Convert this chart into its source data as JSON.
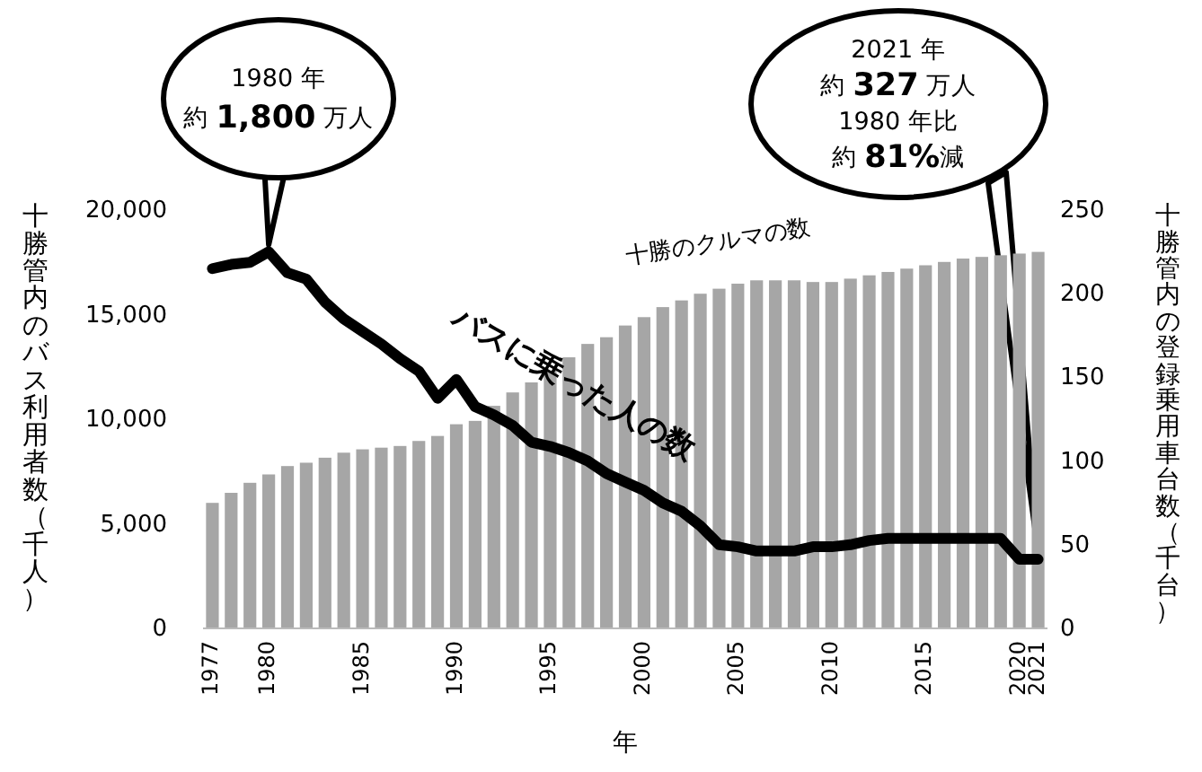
{
  "chart_data": {
    "type": "bar",
    "xlabel": "年",
    "ylabel": "十勝管内のバス利用者数（千人）",
    "y2label": "十勝管内の登録乗用車台数（千台）",
    "x": [
      1977,
      1978,
      1979,
      1980,
      1981,
      1982,
      1983,
      1984,
      1985,
      1986,
      1987,
      1988,
      1989,
      1990,
      1991,
      1992,
      1993,
      1994,
      1995,
      1996,
      1997,
      1998,
      1999,
      2000,
      2001,
      2002,
      2003,
      2004,
      2005,
      2006,
      2007,
      2008,
      2009,
      2010,
      2011,
      2012,
      2013,
      2014,
      2015,
      2016,
      2017,
      2018,
      2019,
      2020,
      2021
    ],
    "xlim": [
      1976.5,
      2021.5
    ],
    "xticks": [
      1977,
      1980,
      1985,
      1990,
      1995,
      2000,
      2005,
      2010,
      2015,
      2020,
      2021
    ],
    "ylim": [
      0,
      20000
    ],
    "yticks": [
      0,
      {
        "value": 5000,
        "label": "5,000"
      },
      {
        "value": 10000,
        "label": "10,000"
      },
      {
        "value": 15000,
        "label": "15,000"
      },
      {
        "value": 20000,
        "label": "20,000"
      }
    ],
    "y2lim": [
      0,
      250
    ],
    "y2ticks": [
      0,
      50,
      100,
      150,
      200,
      250
    ],
    "legend": false,
    "marker": "none",
    "line_style": "solid",
    "series": [
      {
        "name": "十勝のクルマの数",
        "axis": "y2",
        "color": "#a6a6a6",
        "values": [
          75,
          81,
          87,
          92,
          97,
          99,
          102,
          105,
          107,
          108,
          109,
          112,
          115,
          122,
          124,
          133,
          141,
          147,
          154,
          162,
          170,
          174,
          181,
          186,
          192,
          196,
          200,
          203,
          206,
          208,
          208,
          208,
          207,
          207,
          209,
          211,
          213,
          215,
          217,
          219,
          221,
          222,
          223,
          224,
          225
        ]
      },
      {
        "name": "バスに乗った人の数",
        "type": "line",
        "axis": "y",
        "color": "#000000",
        "values": [
          17200,
          17400,
          17500,
          18000,
          17000,
          16700,
          15600,
          14800,
          14200,
          13600,
          12900,
          12300,
          11000,
          11900,
          10600,
          10200,
          9700,
          8900,
          8700,
          8400,
          8000,
          7400,
          7000,
          6600,
          6000,
          5600,
          4900,
          4000,
          3900,
          3700,
          3700,
          3700,
          3900,
          3900,
          4000,
          4200,
          4300,
          4300,
          4300,
          4300,
          4300,
          4300,
          4300,
          3300,
          3300
        ]
      }
    ],
    "annotations": [
      "1980 年",
      "約 **1,800** 万人",
      "2021 年",
      "約 **327** 万人",
      "1980 年比",
      "約 **81%**減"
    ]
  }
}
